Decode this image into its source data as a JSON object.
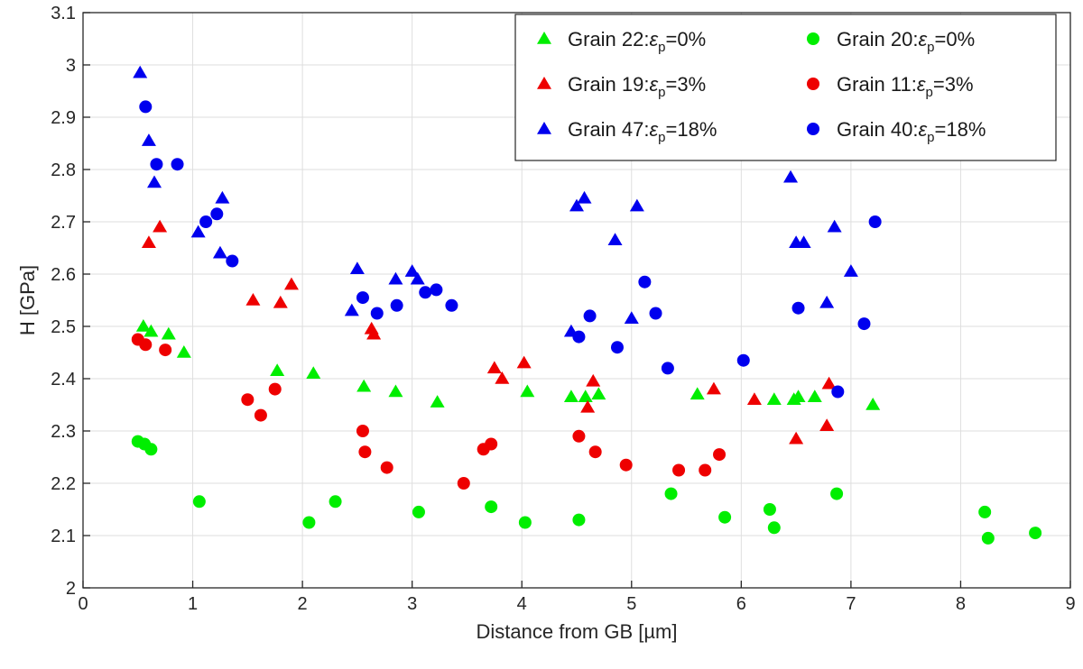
{
  "chart_data": {
    "type": "scatter",
    "xlabel": "Distance from GB [µm]",
    "ylabel": "H [GPa]",
    "xlim": [
      0,
      9
    ],
    "ylim": [
      2,
      3.1
    ],
    "xticks": [
      0,
      1,
      2,
      3,
      4,
      5,
      6,
      7,
      8,
      9
    ],
    "yticks": [
      2,
      2.1,
      2.2,
      2.3,
      2.4,
      2.5,
      2.6,
      2.7,
      2.8,
      2.9,
      3,
      3.1
    ],
    "xtick_labels": [
      "0",
      "1",
      "2",
      "3",
      "4",
      "5",
      "6",
      "7",
      "8",
      "9"
    ],
    "ytick_labels": [
      "2",
      "2.1",
      "2.2",
      "2.3",
      "2.4",
      "2.5",
      "2.6",
      "2.7",
      "2.8",
      "2.9",
      "3",
      "3.1"
    ],
    "grid": true,
    "legend_position": "top-right",
    "series": [
      {
        "name": "Grain 22:εp=0%",
        "legend": {
          "prefix": "Grain 22:",
          "symbol": "ε",
          "sub": "p",
          "suffix": "=0%"
        },
        "marker": "triangle",
        "color": "#00ee00",
        "x": [
          0.55,
          0.62,
          0.78,
          0.92,
          1.77,
          2.1,
          2.56,
          2.85,
          3.23,
          4.05,
          4.45,
          4.58,
          4.7,
          5.6,
          6.3,
          6.48,
          6.52,
          6.67,
          7.2
        ],
        "y": [
          2.5,
          2.49,
          2.485,
          2.45,
          2.415,
          2.41,
          2.385,
          2.375,
          2.355,
          2.375,
          2.365,
          2.365,
          2.37,
          2.37,
          2.36,
          2.36,
          2.365,
          2.365,
          2.35
        ]
      },
      {
        "name": "Grain 19:εp=3%",
        "legend": {
          "prefix": "Grain 19:",
          "symbol": "ε",
          "sub": "p",
          "suffix": "=3%"
        },
        "marker": "triangle",
        "color": "#ee0000",
        "x": [
          0.6,
          0.7,
          1.55,
          1.8,
          1.9,
          2.63,
          2.65,
          3.75,
          3.82,
          4.02,
          4.6,
          4.65,
          5.75,
          6.12,
          6.5,
          6.78,
          6.8
        ],
        "y": [
          2.66,
          2.69,
          2.55,
          2.545,
          2.58,
          2.495,
          2.485,
          2.42,
          2.4,
          2.43,
          2.345,
          2.395,
          2.38,
          2.36,
          2.285,
          2.31,
          2.39
        ]
      },
      {
        "name": "Grain 47:εp=18%",
        "legend": {
          "prefix": "Grain 47:",
          "symbol": "ε",
          "sub": "p",
          "suffix": "=18%"
        },
        "marker": "triangle",
        "color": "#0000ee",
        "x": [
          0.52,
          0.6,
          0.65,
          1.05,
          1.25,
          1.27,
          2.45,
          2.5,
          2.85,
          3.0,
          3.05,
          4.45,
          4.5,
          4.57,
          4.85,
          5.0,
          5.05,
          6.45,
          6.5,
          6.57,
          6.78,
          6.85,
          7.0
        ],
        "y": [
          2.985,
          2.855,
          2.775,
          2.68,
          2.64,
          2.745,
          2.53,
          2.61,
          2.59,
          2.605,
          2.59,
          2.49,
          2.73,
          2.745,
          2.665,
          2.515,
          2.73,
          2.785,
          2.66,
          2.66,
          2.545,
          2.69,
          2.605
        ]
      },
      {
        "name": "Grain 20:εp=0%",
        "legend": {
          "prefix": "Grain 20:",
          "symbol": "ε",
          "sub": "p",
          "suffix": "=0%"
        },
        "marker": "circle",
        "color": "#00ee00",
        "x": [
          0.5,
          0.56,
          0.62,
          1.06,
          2.06,
          2.3,
          3.06,
          3.72,
          4.03,
          4.52,
          5.36,
          5.85,
          6.26,
          6.3,
          6.87,
          8.22,
          8.25,
          8.68
        ],
        "y": [
          2.28,
          2.275,
          2.265,
          2.165,
          2.125,
          2.165,
          2.145,
          2.155,
          2.125,
          2.13,
          2.18,
          2.135,
          2.15,
          2.115,
          2.18,
          2.145,
          2.095,
          2.105
        ]
      },
      {
        "name": "Grain 11:εp=3%",
        "legend": {
          "prefix": "Grain 11:",
          "symbol": "ε",
          "sub": "p",
          "suffix": "=3%"
        },
        "marker": "circle",
        "color": "#ee0000",
        "x": [
          0.5,
          0.57,
          0.75,
          1.5,
          1.62,
          1.75,
          2.55,
          2.57,
          2.77,
          3.47,
          3.65,
          3.72,
          4.52,
          4.67,
          4.95,
          5.43,
          5.67,
          5.8
        ],
        "y": [
          2.475,
          2.465,
          2.455,
          2.36,
          2.33,
          2.38,
          2.3,
          2.26,
          2.23,
          2.2,
          2.265,
          2.275,
          2.29,
          2.26,
          2.235,
          2.225,
          2.225,
          2.255
        ]
      },
      {
        "name": "Grain 40:εp=18%",
        "legend": {
          "prefix": "Grain 40:",
          "symbol": "ε",
          "sub": "p",
          "suffix": "=18%"
        },
        "marker": "circle",
        "color": "#0000ee",
        "x": [
          0.57,
          0.67,
          0.86,
          1.12,
          1.22,
          1.36,
          2.55,
          2.68,
          2.86,
          3.12,
          3.22,
          3.36,
          4.52,
          4.62,
          4.87,
          5.12,
          5.22,
          5.33,
          6.02,
          6.52,
          6.88,
          7.12,
          7.22
        ],
        "y": [
          2.92,
          2.81,
          2.81,
          2.7,
          2.715,
          2.625,
          2.555,
          2.525,
          2.54,
          2.565,
          2.57,
          2.54,
          2.48,
          2.52,
          2.46,
          2.585,
          2.525,
          2.42,
          2.435,
          2.535,
          2.375,
          2.505,
          2.7
        ]
      }
    ]
  }
}
